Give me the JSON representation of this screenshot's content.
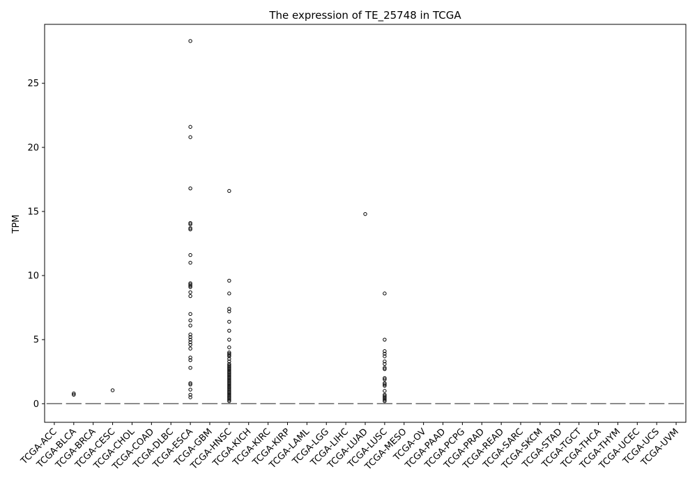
{
  "chart_data": {
    "type": "box",
    "title": "The expression of TE_25748 in TCGA",
    "xlabel": "",
    "ylabel": "TPM",
    "ylim": [
      -1.45,
      29.6
    ],
    "yticks": [
      0,
      5,
      10,
      15,
      20,
      25
    ],
    "grid": false,
    "categories": [
      "TCGA-ACC",
      "TCGA-BLCA",
      "TCGA-BRCA",
      "TCGA-CESC",
      "TCGA-CHOL",
      "TCGA-COAD",
      "TCGA-DLBC",
      "TCGA-ESCA",
      "TCGA-GBM",
      "TCGA-HNSC",
      "TCGA-KICH",
      "TCGA-KIRC",
      "TCGA-KIRP",
      "TCGA-LAML",
      "TCGA-LGG",
      "TCGA-LIHC",
      "TCGA-LUAD",
      "TCGA-LUSC",
      "TCGA-MESO",
      "TCGA-OV",
      "TCGA-PAAD",
      "TCGA-PCPG",
      "TCGA-PRAD",
      "TCGA-READ",
      "TCGA-SARC",
      "TCGA-SKCM",
      "TCGA-STAD",
      "TCGA-TGCT",
      "TCGA-THCA",
      "TCGA-THYM",
      "TCGA-UCEC",
      "TCGA-UCS",
      "TCGA-UVM"
    ],
    "median": 0,
    "outliers": {
      "TCGA-BLCA": [
        0.7,
        0.8
      ],
      "TCGA-CESC": [
        1.05
      ],
      "TCGA-ESCA": [
        28.3,
        21.6,
        20.8,
        16.8,
        14.1,
        14.0,
        13.7,
        13.6,
        11.6,
        11.0,
        9.4,
        9.3,
        9.2,
        9.1,
        8.7,
        8.4,
        7.0,
        6.5,
        6.1,
        5.4,
        5.2,
        5.0,
        4.8,
        4.6,
        4.3,
        3.6,
        3.4,
        2.8,
        1.6,
        1.5,
        1.1,
        0.7,
        0.5
      ],
      "TCGA-HNSC": [
        16.6,
        9.6,
        8.6,
        7.4,
        7.2,
        6.4,
        5.7,
        5.0,
        4.4,
        4.0,
        3.9,
        3.8,
        3.7,
        3.5,
        3.3,
        3.1,
        3.0,
        2.9,
        2.8,
        2.7,
        2.6,
        2.5,
        2.4,
        2.3,
        2.2,
        2.1,
        2.0,
        1.9,
        1.8,
        1.7,
        1.6,
        1.5,
        1.4,
        1.3,
        1.2,
        1.1,
        1.0,
        0.9,
        0.8,
        0.7,
        0.6,
        0.5,
        0.4,
        0.3,
        0.2
      ],
      "TCGA-LUAD": [
        14.8
      ],
      "TCGA-LUSC": [
        8.6,
        5.0,
        4.1,
        3.9,
        3.7,
        3.3,
        3.1,
        2.8,
        2.7,
        2.0,
        1.9,
        1.6,
        1.5,
        1.4,
        1.0,
        0.7,
        0.6,
        0.5,
        0.4,
        0.3,
        0.2
      ]
    },
    "colors": {
      "marker_edge": "#000000",
      "median_line": "#666666",
      "axes": "#000000"
    }
  }
}
